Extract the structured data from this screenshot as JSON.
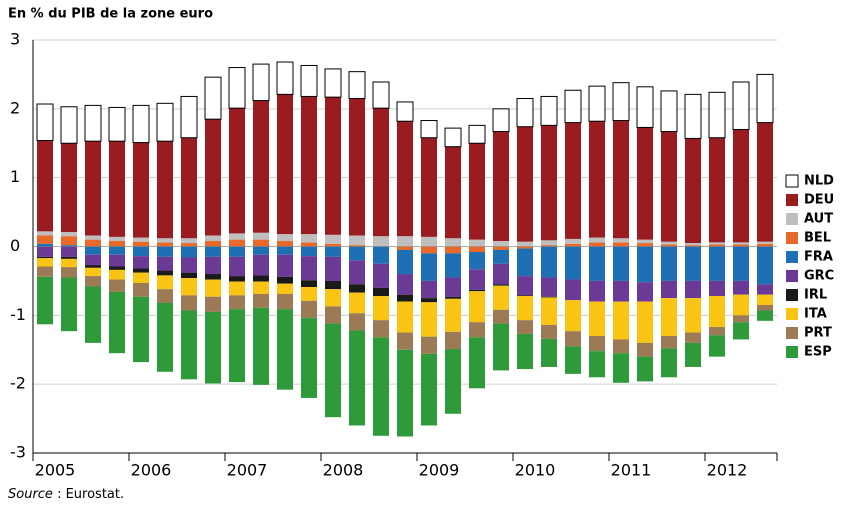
{
  "chart_data": {
    "type": "stacked-bar",
    "title": "En % du PIB de la zone euro",
    "source_label": "Source",
    "source": " : Eurostat.",
    "categories": [
      null,
      null,
      null,
      null,
      null,
      null,
      null,
      null,
      null,
      null,
      null,
      null,
      null,
      null,
      null,
      null,
      null,
      null,
      null,
      null,
      null,
      null,
      null,
      null,
      null,
      null,
      null,
      null,
      null,
      null,
      null
    ],
    "xgroups": [
      "2005",
      "2006",
      "2007",
      "2008",
      "2009",
      "2010",
      "2011",
      "2012"
    ],
    "ylim": [
      -3,
      3
    ],
    "yticks": [
      -3,
      -2,
      -1,
      0,
      1,
      2,
      3
    ],
    "grid": true,
    "legend": "right",
    "series": [
      {
        "name": "NLD",
        "color": "#ffffff",
        "border": "#000000",
        "values": [
          0.53,
          0.53,
          0.52,
          0.49,
          0.54,
          0.55,
          0.6,
          0.61,
          0.59,
          0.53,
          0.47,
          0.45,
          0.41,
          0.39,
          0.38,
          0.28,
          0.25,
          0.27,
          0.26,
          0.33,
          0.41,
          0.42,
          0.47,
          0.51,
          0.55,
          0.59,
          0.59,
          0.64,
          0.66,
          0.69,
          0.7
        ]
      },
      {
        "name": "DEU",
        "color": "#9b1c20",
        "values": [
          1.32,
          1.29,
          1.37,
          1.39,
          1.38,
          1.41,
          1.46,
          1.69,
          1.82,
          1.92,
          2.03,
          2.0,
          2.0,
          1.99,
          1.86,
          1.67,
          1.44,
          1.33,
          1.4,
          1.59,
          1.67,
          1.67,
          1.69,
          1.69,
          1.71,
          1.63,
          1.6,
          1.52,
          1.52,
          1.64,
          1.73
        ]
      },
      {
        "name": "AUT",
        "color": "#bfbfbf",
        "values": [
          0.06,
          0.06,
          0.06,
          0.06,
          0.06,
          0.06,
          0.07,
          0.08,
          0.09,
          0.1,
          0.1,
          0.12,
          0.13,
          0.14,
          0.15,
          0.15,
          0.14,
          0.12,
          0.1,
          0.08,
          0.07,
          0.07,
          0.07,
          0.07,
          0.06,
          0.05,
          0.04,
          0.03,
          0.03,
          0.03,
          0.03
        ]
      },
      {
        "name": "BEL",
        "color": "#e8692a",
        "values": [
          0.12,
          0.13,
          0.1,
          0.08,
          0.07,
          0.06,
          0.05,
          0.08,
          0.1,
          0.1,
          0.08,
          0.06,
          0.04,
          0.02,
          0,
          -0.05,
          -0.1,
          -0.1,
          -0.08,
          -0.05,
          -0.03,
          0.02,
          0.04,
          0.06,
          0.06,
          0.05,
          0.03,
          0.02,
          0.03,
          0.03,
          0.04
        ]
      },
      {
        "name": "FRA",
        "color": "#1f6fb5",
        "values": [
          0.04,
          0.02,
          -0.12,
          -0.12,
          -0.14,
          -0.15,
          -0.16,
          -0.15,
          -0.15,
          -0.12,
          -0.12,
          -0.14,
          -0.15,
          -0.2,
          -0.25,
          -0.35,
          -0.4,
          -0.35,
          -0.25,
          -0.2,
          -0.4,
          -0.45,
          -0.48,
          -0.5,
          -0.5,
          -0.52,
          -0.5,
          -0.5,
          -0.5,
          -0.5,
          -0.55
        ]
      },
      {
        "name": "GRC",
        "color": "#6b3a96",
        "values": [
          -0.15,
          -0.15,
          -0.15,
          -0.17,
          -0.18,
          -0.2,
          -0.22,
          -0.25,
          -0.28,
          -0.3,
          -0.32,
          -0.35,
          -0.35,
          -0.35,
          -0.35,
          -0.3,
          -0.25,
          -0.28,
          -0.3,
          -0.3,
          -0.28,
          -0.28,
          -0.3,
          -0.3,
          -0.3,
          -0.28,
          -0.25,
          -0.25,
          -0.22,
          -0.2,
          -0.15
        ]
      },
      {
        "name": "IRL",
        "color": "#1a1a1a",
        "values": [
          -0.02,
          -0.03,
          -0.04,
          -0.05,
          -0.06,
          -0.07,
          -0.08,
          -0.08,
          -0.08,
          -0.09,
          -0.1,
          -0.1,
          -0.12,
          -0.12,
          -0.12,
          -0.1,
          -0.06,
          -0.03,
          -0.02,
          -0.02,
          -0.01,
          -0.01,
          0,
          0,
          0,
          0,
          0,
          0,
          0,
          0,
          0
        ]
      },
      {
        "name": "ITA",
        "color": "#f9c414",
        "values": [
          -0.12,
          -0.12,
          -0.12,
          -0.14,
          -0.15,
          -0.2,
          -0.25,
          -0.25,
          -0.2,
          -0.18,
          -0.15,
          -0.2,
          -0.25,
          -0.3,
          -0.35,
          -0.45,
          -0.5,
          -0.48,
          -0.45,
          -0.35,
          -0.35,
          -0.4,
          -0.45,
          -0.5,
          -0.55,
          -0.6,
          -0.55,
          -0.5,
          -0.45,
          -0.3,
          -0.15
        ]
      },
      {
        "name": "PRT",
        "color": "#9c7a55",
        "values": [
          -0.15,
          -0.15,
          -0.15,
          -0.18,
          -0.2,
          -0.2,
          -0.22,
          -0.22,
          -0.2,
          -0.2,
          -0.22,
          -0.25,
          -0.25,
          -0.25,
          -0.25,
          -0.25,
          -0.25,
          -0.25,
          -0.22,
          -0.2,
          -0.2,
          -0.2,
          -0.22,
          -0.22,
          -0.2,
          -0.2,
          -0.18,
          -0.15,
          -0.12,
          -0.1,
          -0.08
        ]
      },
      {
        "name": "ESP",
        "color": "#2e9a3a",
        "values": [
          -0.69,
          -0.78,
          -0.82,
          -0.89,
          -0.95,
          -1.0,
          -1.0,
          -1.04,
          -1.06,
          -1.12,
          -1.17,
          -1.16,
          -1.36,
          -1.38,
          -1.43,
          -1.26,
          -1.04,
          -0.94,
          -0.74,
          -0.68,
          -0.51,
          -0.41,
          -0.4,
          -0.38,
          -0.43,
          -0.36,
          -0.42,
          -0.35,
          -0.31,
          -0.25,
          -0.15
        ]
      }
    ]
  }
}
